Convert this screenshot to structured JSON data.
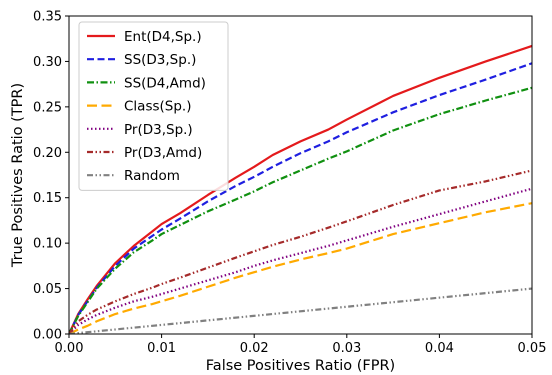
{
  "chart_data": {
    "type": "line",
    "xlabel": "False Positives Ratio (FPR)",
    "ylabel": "True Positives Ratio (TPR)",
    "xlim": [
      0,
      0.05
    ],
    "ylim": [
      0,
      0.35
    ],
    "xticks": [
      0,
      0.01,
      0.02,
      0.03,
      0.04,
      0.05
    ],
    "xtick_labels": [
      "0.00",
      "0.01",
      "0.02",
      "0.03",
      "0.04",
      "0.05"
    ],
    "yticks": [
      0,
      0.05,
      0.1,
      0.15,
      0.2,
      0.25,
      0.3,
      0.35
    ],
    "ytick_labels": [
      "0.00",
      "0.05",
      "0.10",
      "0.15",
      "0.20",
      "0.25",
      "0.30",
      "0.35"
    ],
    "grid": false,
    "legend_position": "top-left",
    "series": [
      {
        "name": "Ent(D4,Sp.)",
        "color": "#e41a1c",
        "dash": "solid",
        "x": [
          0,
          0.001,
          0.002,
          0.003,
          0.005,
          0.007,
          0.009,
          0.01,
          0.012,
          0.015,
          0.018,
          0.02,
          0.022,
          0.025,
          0.028,
          0.03,
          0.035,
          0.04,
          0.045,
          0.05
        ],
        "y": [
          0,
          0.022,
          0.038,
          0.053,
          0.078,
          0.097,
          0.113,
          0.121,
          0.133,
          0.153,
          0.172,
          0.184,
          0.197,
          0.212,
          0.225,
          0.236,
          0.262,
          0.282,
          0.3,
          0.317
        ]
      },
      {
        "name": "SS(D3,Sp.)",
        "color": "#1f1fe0",
        "dash": "dashed",
        "x": [
          0,
          0.001,
          0.002,
          0.003,
          0.005,
          0.007,
          0.009,
          0.01,
          0.012,
          0.015,
          0.018,
          0.02,
          0.022,
          0.025,
          0.028,
          0.03,
          0.035,
          0.04,
          0.045,
          0.05
        ],
        "y": [
          0,
          0.021,
          0.036,
          0.051,
          0.075,
          0.094,
          0.108,
          0.115,
          0.127,
          0.146,
          0.163,
          0.173,
          0.184,
          0.199,
          0.212,
          0.222,
          0.244,
          0.263,
          0.28,
          0.298
        ]
      },
      {
        "name": "SS(D4,Amd)",
        "color": "#109010",
        "dash": "dashdot",
        "x": [
          0,
          0.001,
          0.002,
          0.003,
          0.005,
          0.007,
          0.009,
          0.01,
          0.012,
          0.015,
          0.018,
          0.02,
          0.022,
          0.025,
          0.028,
          0.03,
          0.035,
          0.04,
          0.045,
          0.05
        ],
        "y": [
          0,
          0.02,
          0.035,
          0.05,
          0.072,
          0.09,
          0.103,
          0.11,
          0.12,
          0.135,
          0.148,
          0.157,
          0.167,
          0.18,
          0.193,
          0.201,
          0.224,
          0.242,
          0.257,
          0.271
        ]
      },
      {
        "name": "Class(Sp.)",
        "color": "#ffaa00",
        "dash": "longdash",
        "x": [
          0,
          0.001,
          0.002,
          0.003,
          0.005,
          0.007,
          0.009,
          0.01,
          0.012,
          0.015,
          0.018,
          0.02,
          0.022,
          0.025,
          0.028,
          0.03,
          0.035,
          0.04,
          0.045,
          0.05
        ],
        "y": [
          0,
          0.005,
          0.009,
          0.014,
          0.022,
          0.028,
          0.033,
          0.036,
          0.042,
          0.052,
          0.062,
          0.068,
          0.074,
          0.082,
          0.089,
          0.094,
          0.11,
          0.122,
          0.134,
          0.144
        ]
      },
      {
        "name": "Pr(D3,Sp.)",
        "color": "#800080",
        "dash": "dotted",
        "x": [
          0,
          0.001,
          0.002,
          0.003,
          0.005,
          0.007,
          0.009,
          0.01,
          0.012,
          0.015,
          0.018,
          0.02,
          0.022,
          0.025,
          0.028,
          0.03,
          0.035,
          0.04,
          0.045,
          0.05
        ],
        "y": [
          0,
          0.01,
          0.016,
          0.021,
          0.029,
          0.036,
          0.041,
          0.044,
          0.05,
          0.059,
          0.068,
          0.075,
          0.081,
          0.089,
          0.097,
          0.103,
          0.118,
          0.132,
          0.146,
          0.16
        ]
      },
      {
        "name": "Pr(D3,Amd)",
        "color": "#a52a2a",
        "dash": "dashdotdot",
        "x": [
          0,
          0.001,
          0.002,
          0.003,
          0.005,
          0.007,
          0.009,
          0.01,
          0.012,
          0.015,
          0.018,
          0.02,
          0.022,
          0.025,
          0.028,
          0.03,
          0.035,
          0.04,
          0.045,
          0.05
        ],
        "y": [
          0,
          0.014,
          0.021,
          0.027,
          0.036,
          0.044,
          0.051,
          0.055,
          0.062,
          0.073,
          0.084,
          0.091,
          0.098,
          0.107,
          0.117,
          0.124,
          0.142,
          0.158,
          0.168,
          0.18
        ]
      },
      {
        "name": "Random",
        "color": "#808080",
        "dash": "dashdotdot",
        "x": [
          0,
          0.05
        ],
        "y": [
          0,
          0.05
        ]
      }
    ]
  }
}
